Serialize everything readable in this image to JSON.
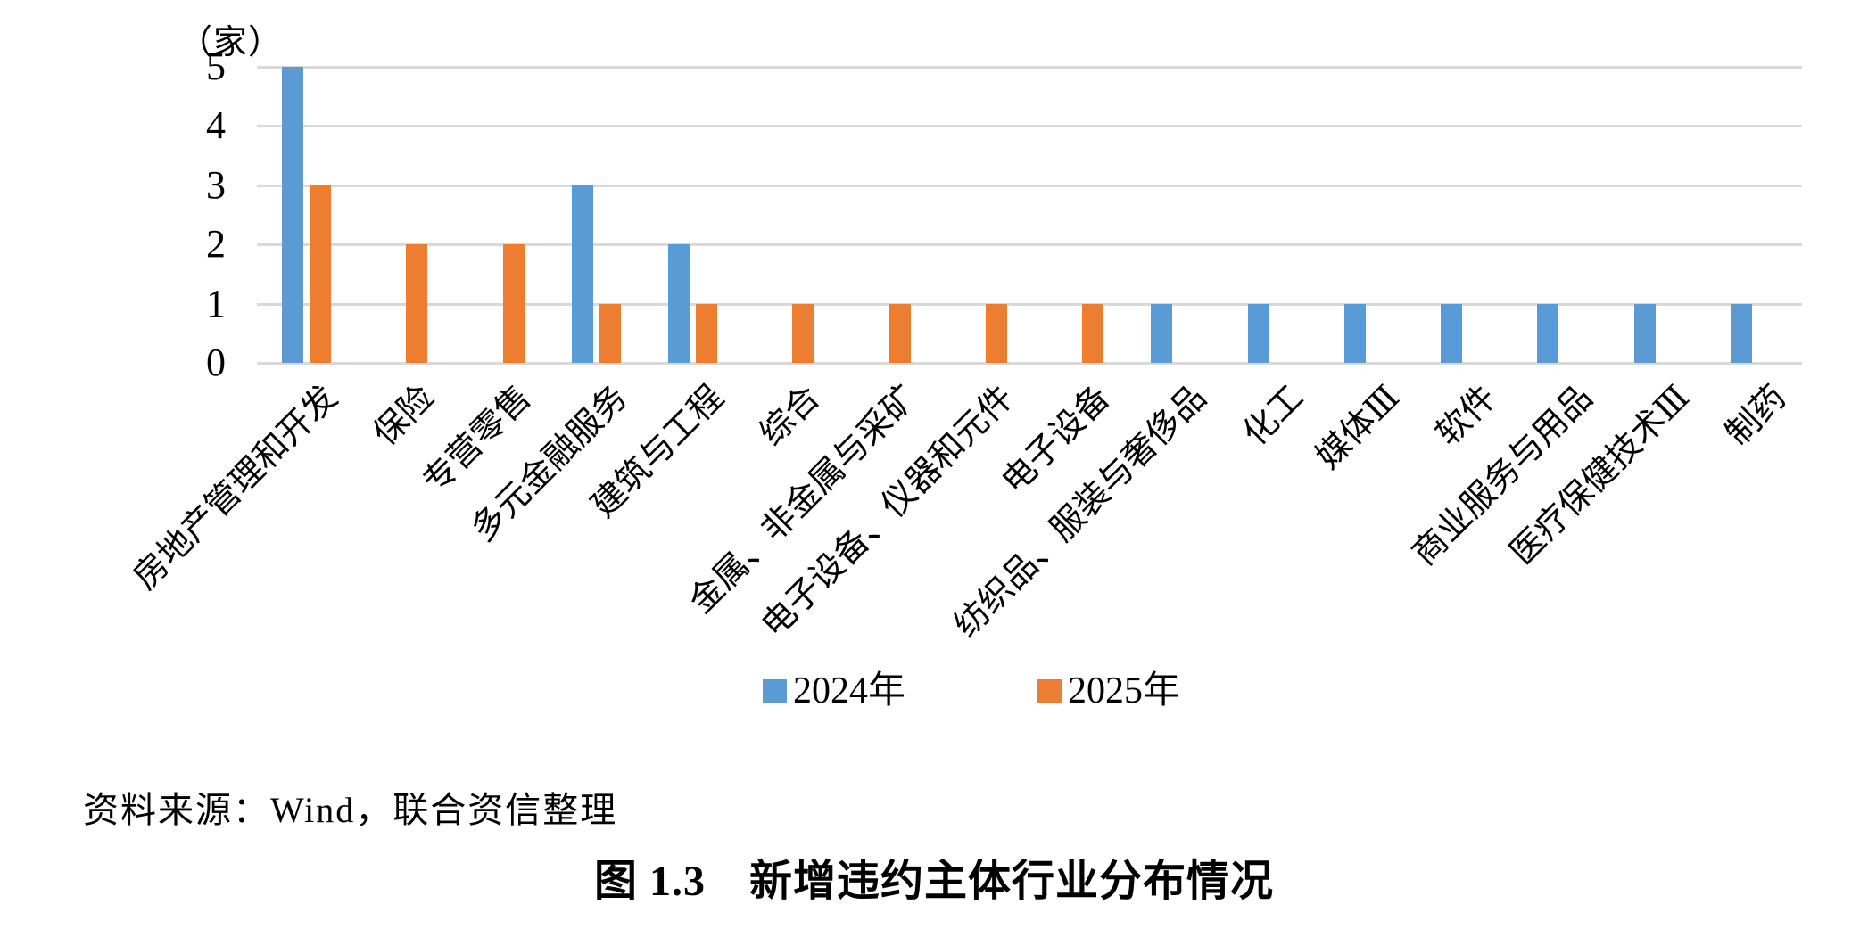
{
  "page": {
    "source_note": "资料来源：Wind，联合资信整理",
    "caption": "图 1.3　新增违约主体行业分布情况"
  },
  "chart_data": {
    "type": "bar",
    "title": "图 1.3 新增违约主体行业分布情况",
    "unit_label": "（家）",
    "ylabel": "（家）",
    "xlabel": "",
    "categories": [
      "房地产管理和开发",
      "保险",
      "专营零售",
      "多元金融服务",
      "建筑与工程",
      "综合",
      "金属、非金属与采矿",
      "电子设备、仪器和元件",
      "电子设备",
      "纺织品、服装与奢侈品",
      "化工",
      "媒体Ⅲ",
      "软件",
      "商业服务与用品",
      "医疗保健技术Ⅲ",
      "制药"
    ],
    "series": [
      {
        "name": "2024年",
        "color": "#5B9BD5",
        "values": [
          5,
          0,
          0,
          3,
          2,
          0,
          0,
          0,
          0,
          1,
          1,
          1,
          1,
          1,
          1,
          1
        ]
      },
      {
        "name": "2025年",
        "color": "#ED7D31",
        "values": [
          3,
          2,
          2,
          1,
          1,
          1,
          1,
          1,
          1,
          0,
          0,
          0,
          0,
          0,
          0,
          0
        ]
      }
    ],
    "ylim": [
      0,
      5
    ],
    "yticks": [
      0,
      1,
      2,
      3,
      4,
      5
    ],
    "grid": "horizontal",
    "gridline_color": "#D9D9D9",
    "legend_position": "bottom"
  }
}
